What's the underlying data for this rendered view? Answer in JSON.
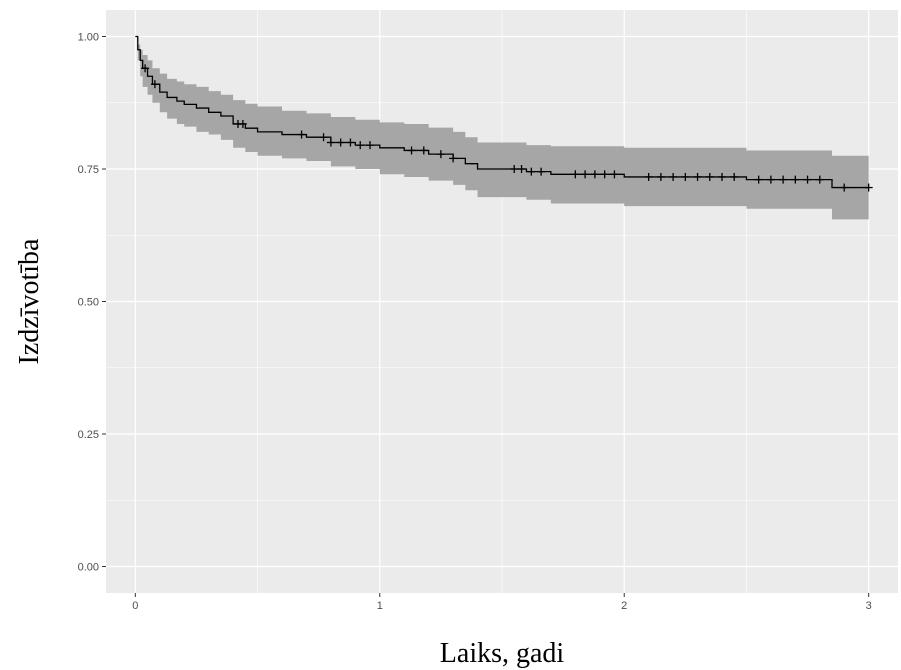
{
  "chart_data": {
    "type": "line",
    "title": "",
    "xlabel": "Laiks, gadi",
    "ylabel": "Izdzīvotība",
    "xlim": [
      -0.12,
      3.12
    ],
    "ylim": [
      -0.05,
      1.05
    ],
    "xticks": [
      0,
      1,
      2,
      3
    ],
    "xtick_labels": [
      "0",
      "1",
      "2",
      "3"
    ],
    "yticks": [
      0,
      0.25,
      0.5,
      0.75,
      1
    ],
    "ytick_labels": [
      "0.00",
      "0.25",
      "0.50",
      "0.75",
      "1.00"
    ],
    "grid": true,
    "legend": "none",
    "colors": {
      "panel": "#ebebeb",
      "grid": "#ffffff",
      "band": "#a6a6a6",
      "line": "#000000"
    },
    "series": [
      {
        "style": "step",
        "x": [
          0,
          0.01,
          0.02,
          0.03,
          0.05,
          0.07,
          0.1,
          0.13,
          0.17,
          0.2,
          0.25,
          0.3,
          0.35,
          0.4,
          0.45,
          0.5,
          0.6,
          0.7,
          0.8,
          0.9,
          1.0,
          1.1,
          1.2,
          1.3,
          1.35,
          1.4,
          1.6,
          1.7,
          2.0,
          2.5,
          2.85,
          3.0
        ],
        "y": [
          1.0,
          0.975,
          0.955,
          0.94,
          0.925,
          0.91,
          0.895,
          0.885,
          0.878,
          0.872,
          0.865,
          0.857,
          0.85,
          0.835,
          0.827,
          0.82,
          0.815,
          0.81,
          0.8,
          0.795,
          0.79,
          0.785,
          0.778,
          0.77,
          0.76,
          0.75,
          0.745,
          0.74,
          0.735,
          0.73,
          0.715,
          0.715
        ]
      }
    ],
    "confidence_band": {
      "x": [
        0,
        0.01,
        0.02,
        0.03,
        0.05,
        0.07,
        0.1,
        0.13,
        0.17,
        0.2,
        0.25,
        0.3,
        0.35,
        0.4,
        0.45,
        0.5,
        0.6,
        0.7,
        0.8,
        0.9,
        1.0,
        1.1,
        1.2,
        1.3,
        1.35,
        1.4,
        1.6,
        1.7,
        2.0,
        2.5,
        2.85,
        3.0
      ],
      "lower": [
        1.0,
        0.955,
        0.925,
        0.905,
        0.89,
        0.875,
        0.857,
        0.845,
        0.835,
        0.83,
        0.82,
        0.815,
        0.805,
        0.79,
        0.782,
        0.775,
        0.77,
        0.765,
        0.755,
        0.75,
        0.74,
        0.735,
        0.728,
        0.72,
        0.71,
        0.697,
        0.692,
        0.685,
        0.68,
        0.675,
        0.655,
        0.655
      ],
      "upper": [
        1.0,
        0.985,
        0.975,
        0.965,
        0.955,
        0.94,
        0.93,
        0.92,
        0.915,
        0.91,
        0.905,
        0.897,
        0.89,
        0.88,
        0.873,
        0.868,
        0.86,
        0.855,
        0.848,
        0.843,
        0.838,
        0.835,
        0.828,
        0.82,
        0.81,
        0.8,
        0.795,
        0.793,
        0.79,
        0.785,
        0.775,
        0.775
      ]
    },
    "censor_times": [
      0.04,
      0.08,
      0.42,
      0.44,
      0.68,
      0.77,
      0.8,
      0.84,
      0.88,
      0.92,
      0.96,
      1.13,
      1.18,
      1.25,
      1.3,
      1.55,
      1.58,
      1.62,
      1.66,
      1.8,
      1.84,
      1.88,
      1.92,
      1.96,
      2.1,
      2.15,
      2.2,
      2.25,
      2.3,
      2.35,
      2.4,
      2.45,
      2.55,
      2.6,
      2.65,
      2.7,
      2.75,
      2.8,
      2.9,
      3.0
    ]
  }
}
